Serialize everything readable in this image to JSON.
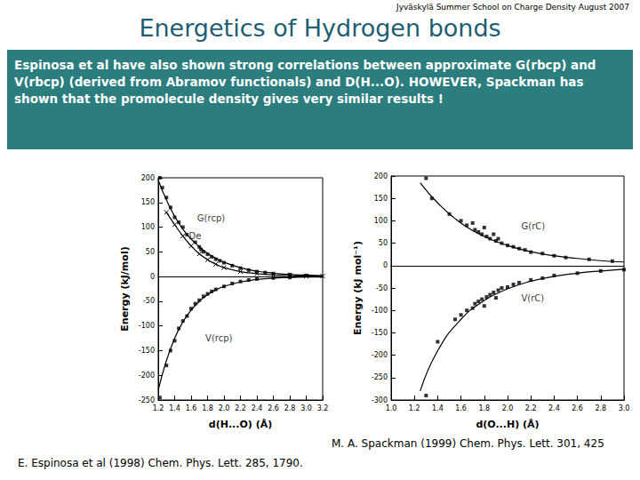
{
  "header": "Jyväskylä Summer School on Charge Density August 2007",
  "title": "Energetics of Hydrogen bonds",
  "body": "Espinosa et al have also shown strong correlations between approximate G(rbcp) and V(rbcp) (derived from Abramov functionals) and D(H...O). HOWEVER, Spackman has shown that the promolecule density gives very similar results !",
  "chart_data": [
    {
      "type": "scatter",
      "caption": "E. Espinosa et al (1998) Chem. Phys. Lett. 285, 1790.",
      "x_label": "d(H...O) (Å)",
      "y_label": "Energy (kJ/mol)",
      "xlim": [
        1.2,
        3.2
      ],
      "xticks": [
        1.2,
        1.4,
        1.6,
        1.8,
        {
          "value": 2.0,
          "label": "2.0"
        },
        2.2,
        2.4,
        2.6,
        2.8,
        {
          "value": 3.0,
          "label": "3.0"
        },
        3.2
      ],
      "ylim": [
        -250,
        200
      ],
      "yticks": [
        -250,
        -200,
        -150,
        -100,
        -50,
        0,
        50,
        100,
        150,
        200
      ],
      "grid": false,
      "series": [
        {
          "type": "scatter",
          "marker": "square",
          "color": "#000000",
          "x": [
            1.22,
            1.25,
            1.3,
            1.35,
            1.4,
            1.45,
            1.5,
            1.55,
            1.6,
            1.65,
            1.7,
            1.72,
            1.75,
            1.8,
            1.85,
            1.9,
            1.95,
            2.0,
            2.1,
            2.2,
            2.3,
            2.4,
            2.5,
            2.6,
            2.8,
            3.0
          ],
          "values": [
            200,
            180,
            160,
            140,
            120,
            110,
            100,
            85,
            78,
            70,
            60,
            55,
            50,
            45,
            40,
            35,
            32,
            28,
            22,
            17,
            13,
            10,
            8,
            6,
            4,
            2
          ]
        },
        {
          "type": "scatter",
          "marker": "square",
          "color": "#000000",
          "x": [
            1.22,
            1.3,
            1.35,
            1.4,
            1.45,
            1.5,
            1.55,
            1.6,
            1.65,
            1.7,
            1.75,
            1.8,
            1.85,
            1.9,
            2.0,
            2.1,
            2.2,
            2.3,
            2.4,
            2.6,
            2.8
          ],
          "values": [
            -245,
            -180,
            -150,
            -130,
            -105,
            -90,
            -80,
            -65,
            -55,
            -48,
            -40,
            -35,
            -30,
            -26,
            -20,
            -14,
            -10,
            -7,
            -5,
            -3,
            -2
          ]
        },
        {
          "type": "line",
          "line_style": "solid",
          "color": "#000000",
          "x": [
            1.2,
            1.3,
            1.4,
            1.5,
            1.6,
            1.7,
            1.8,
            1.9,
            2.0,
            2.2,
            2.4,
            2.6,
            2.8,
            3.0,
            3.2
          ],
          "values": [
            195,
            155,
            122,
            96,
            76,
            60,
            47,
            37,
            29,
            18,
            11,
            7,
            4,
            3,
            2
          ]
        },
        {
          "type": "line",
          "line_style": "solid",
          "color": "#000000",
          "x": [
            1.2,
            1.3,
            1.4,
            1.5,
            1.6,
            1.7,
            1.8,
            1.9,
            2.0,
            2.2,
            2.4,
            2.6,
            2.8,
            3.0,
            3.2
          ],
          "values": [
            -230,
            -170,
            -125,
            -92,
            -68,
            -50,
            -37,
            -27,
            -20,
            -11,
            -6,
            -3,
            -2,
            -1,
            -1
          ]
        },
        {
          "type": "line",
          "line_style": "solid",
          "marker": "cross",
          "color": "#000000",
          "x": [
            1.3,
            1.4,
            1.5,
            1.6,
            1.7,
            1.8,
            1.9,
            2.0,
            2.2,
            2.4,
            2.6,
            2.8,
            3.0,
            3.2
          ],
          "values": [
            130,
            105,
            82,
            62,
            46,
            34,
            25,
            18,
            10,
            6,
            3,
            2,
            1,
            1
          ]
        }
      ],
      "annotations": [
        {
          "text": "G(rcp)",
          "x": 1.62,
          "y": 118
        },
        {
          "text": "De",
          "x": 1.52,
          "y": 82
        },
        {
          "text": "V(rcp)",
          "x": 1.72,
          "y": -125
        }
      ]
    },
    {
      "type": "scatter",
      "caption": "M. A. Spackman (1999) Chem. Phys. Lett. 301, 425",
      "x_label": "d(O...H) (Å)",
      "y_label": "Energy (kJ mol⁻¹)",
      "xlim": [
        1.0,
        3.0
      ],
      "xticks": [
        {
          "value": 1.0,
          "label": "1.0"
        },
        1.2,
        1.4,
        1.6,
        1.8,
        {
          "value": 2.0,
          "label": "2.0"
        },
        2.2,
        2.4,
        2.6,
        2.8,
        {
          "value": 3.0,
          "label": "3.0"
        }
      ],
      "ylim": [
        -300,
        200
      ],
      "yticks": [
        -300,
        -250,
        -200,
        -150,
        -100,
        -50,
        0,
        50,
        100,
        150,
        200
      ],
      "grid": false,
      "series": [
        {
          "type": "scatter",
          "marker": "square",
          "color": "#000000",
          "x": [
            1.3,
            1.35,
            1.5,
            1.6,
            1.65,
            1.7,
            1.72,
            1.75,
            1.78,
            1.8,
            1.82,
            1.85,
            1.88,
            1.9,
            1.92,
            1.95,
            2.0,
            2.05,
            2.1,
            2.15,
            2.2,
            2.3,
            2.4,
            2.5,
            2.7,
            2.9
          ],
          "values": [
            195,
            150,
            115,
            100,
            90,
            95,
            80,
            75,
            70,
            85,
            65,
            60,
            70,
            55,
            60,
            50,
            45,
            42,
            38,
            35,
            30,
            27,
            22,
            18,
            14,
            10
          ]
        },
        {
          "type": "scatter",
          "marker": "square",
          "color": "#000000",
          "x": [
            1.3,
            1.4,
            1.55,
            1.6,
            1.65,
            1.7,
            1.72,
            1.75,
            1.78,
            1.8,
            1.82,
            1.85,
            1.88,
            1.9,
            1.92,
            1.95,
            2.0,
            2.05,
            2.1,
            2.2,
            2.3,
            2.4,
            2.6,
            2.8,
            3.0
          ],
          "values": [
            -290,
            -170,
            -120,
            -110,
            -100,
            -95,
            -85,
            -80,
            -75,
            -90,
            -70,
            -65,
            -60,
            -72,
            -55,
            -50,
            -48,
            -42,
            -38,
            -32,
            -28,
            -22,
            -17,
            -12,
            -9
          ]
        },
        {
          "type": "line",
          "line_style": "solid",
          "color": "#000000",
          "x": [
            1.25,
            1.4,
            1.6,
            1.8,
            2.0,
            2.2,
            2.4,
            2.6,
            2.8,
            3.0
          ],
          "values": [
            185,
            140,
            95,
            65,
            45,
            31,
            22,
            16,
            11,
            8
          ]
        },
        {
          "type": "line",
          "line_style": "solid",
          "color": "#000000",
          "x": [
            1.25,
            1.4,
            1.6,
            1.8,
            2.0,
            2.2,
            2.4,
            2.6,
            2.8,
            3.0
          ],
          "values": [
            -280,
            -190,
            -120,
            -78,
            -52,
            -35,
            -24,
            -17,
            -12,
            -8
          ]
        }
      ],
      "annotations": [
        {
          "text": "G(rC)",
          "x": 2.08,
          "y": 88
        },
        {
          "text": "V(rC)",
          "x": 2.08,
          "y": -72
        }
      ]
    }
  ]
}
